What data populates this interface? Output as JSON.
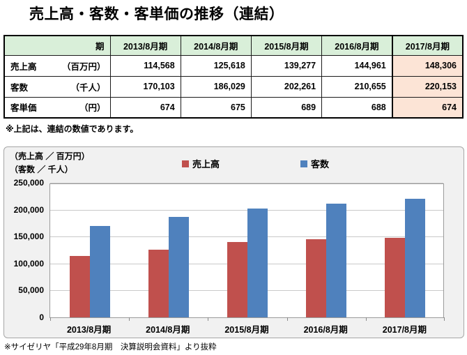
{
  "title": "売上高・客数・客単価の推移（連結）",
  "table": {
    "header_color": "#d9efd9",
    "highlight_color": "#fce4d6",
    "period_label": "期",
    "columns": [
      "2013/8月期",
      "2014/8月期",
      "2015/8月期",
      "2016/8月期",
      "2017/8月期"
    ],
    "rows": [
      {
        "name": "売上高",
        "unit": "（百万円）",
        "values": [
          "114,568",
          "125,618",
          "139,277",
          "144,961",
          "148,306"
        ]
      },
      {
        "name": "客数",
        "unit": "（千人）",
        "values": [
          "170,103",
          "186,029",
          "202,261",
          "210,655",
          "220,153"
        ]
      },
      {
        "name": "客単価",
        "unit": "（円）",
        "values": [
          "674",
          "675",
          "689",
          "688",
          "674"
        ]
      }
    ]
  },
  "note": "※上記は、連結の数値であります。",
  "chart": {
    "unit_label_sales": "（売上高 ／ 百万円）",
    "unit_label_customers": "（客数 ／ 千人）"
  },
  "chart_data": {
    "type": "bar",
    "title": "",
    "xlabel": "",
    "ylabel": "売上高/百万円・客数/千人",
    "categories": [
      "2013/8月期",
      "2014/8月期",
      "2015/8月期",
      "2016/8月期",
      "2017/8月期"
    ],
    "series": [
      {
        "key": "sales",
        "name": "売上高",
        "color": "#c0504d",
        "values": [
          114568,
          125618,
          139277,
          144961,
          148306
        ]
      },
      {
        "key": "customers",
        "name": "客数",
        "color": "#4f81bd",
        "values": [
          170103,
          186029,
          202261,
          210655,
          220153
        ]
      }
    ],
    "ylim": [
      0,
      250000
    ],
    "ytick_interval": 50000,
    "yticks": [
      "0",
      "50,000",
      "100,000",
      "150,000",
      "200,000",
      "250,000"
    ],
    "grid": true,
    "legend_position": "top"
  },
  "caption": "※サイゼリヤ「平成29年8月期　決算説明会資料」より抜粋"
}
